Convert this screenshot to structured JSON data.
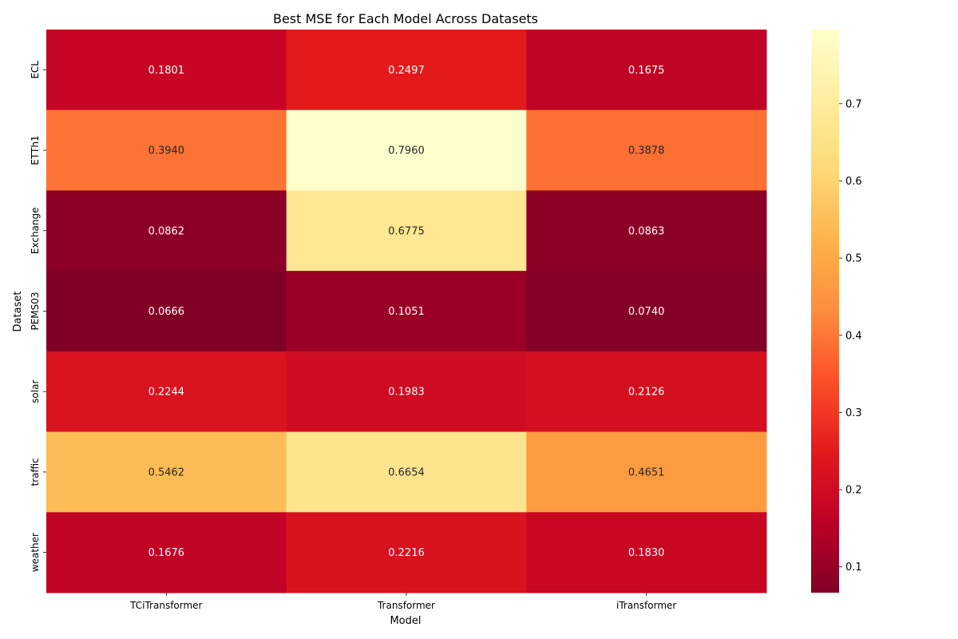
{
  "chart_data": {
    "type": "heatmap",
    "title": "Best MSE for Each Model Across Datasets",
    "xlabel": "Model",
    "ylabel": "Dataset",
    "x_categories": [
      "TCiTransformer",
      "Transformer",
      "iTransformer"
    ],
    "y_categories": [
      "ECL",
      "ETTh1",
      "Exchange",
      "PEMS03",
      "solar",
      "traffic",
      "weather"
    ],
    "values": [
      [
        0.1801,
        0.2497,
        0.1675
      ],
      [
        0.394,
        0.796,
        0.3878
      ],
      [
        0.0862,
        0.6775,
        0.0863
      ],
      [
        0.0666,
        0.1051,
        0.074
      ],
      [
        0.2244,
        0.1983,
        0.2126
      ],
      [
        0.5462,
        0.6654,
        0.4651
      ],
      [
        0.1676,
        0.2216,
        0.183
      ]
    ],
    "value_labels": [
      [
        "0.1801",
        "0.2497",
        "0.1675"
      ],
      [
        "0.3940",
        "0.7960",
        "0.3878"
      ],
      [
        "0.0862",
        "0.6775",
        "0.0863"
      ],
      [
        "0.0666",
        "0.1051",
        "0.0740"
      ],
      [
        "0.2244",
        "0.1983",
        "0.2126"
      ],
      [
        "0.5462",
        "0.6654",
        "0.4651"
      ],
      [
        "0.1676",
        "0.2216",
        "0.1830"
      ]
    ],
    "colormap": "YlOrRd_r",
    "vmin": 0.0666,
    "vmax": 0.796,
    "colorbar_ticks": [
      0.1,
      0.2,
      0.3,
      0.4,
      0.5,
      0.6,
      0.7
    ],
    "colorbar_tick_labels": [
      "0.1",
      "0.2",
      "0.3",
      "0.4",
      "0.5",
      "0.6",
      "0.7"
    ],
    "colorbar_position": "right",
    "grid": false
  }
}
